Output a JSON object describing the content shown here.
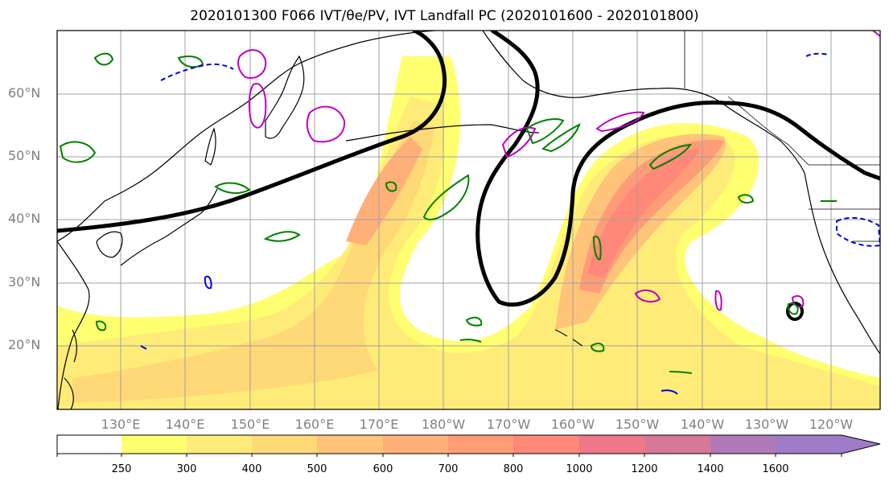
{
  "title": "2020101300 F066 IVT/θe/PV, IVT Landfall PC (2020101600 - 2020101800)",
  "map": {
    "lat_labels": [
      "60°N",
      "50°N",
      "40°N",
      "30°N",
      "20°N"
    ],
    "lon_labels": [
      "130°E",
      "140°E",
      "150°E",
      "160°E",
      "170°E",
      "180°W",
      "170°W",
      "160°W",
      "150°W",
      "140°W",
      "130°W",
      "120°W"
    ],
    "colors": {
      "coast": "#000000",
      "grid": "#a0a0a0",
      "theta_e_contour": "#000000",
      "pv_magenta": "#c000c0",
      "pv_green": "#008000",
      "pv_blue": "#0000e0"
    }
  },
  "colorbar": {
    "labels": [
      "250",
      "300",
      "400",
      "500",
      "600",
      "700",
      "800",
      "1000",
      "1200",
      "1400",
      "1600"
    ],
    "colors": [
      "#ffffff",
      "#ffff70",
      "#ffec78",
      "#ffd878",
      "#ffc47a",
      "#ffb078",
      "#ff9c78",
      "#ff8878",
      "#f07888",
      "#d87898",
      "#b07ab8",
      "#a07cc8"
    ]
  }
}
